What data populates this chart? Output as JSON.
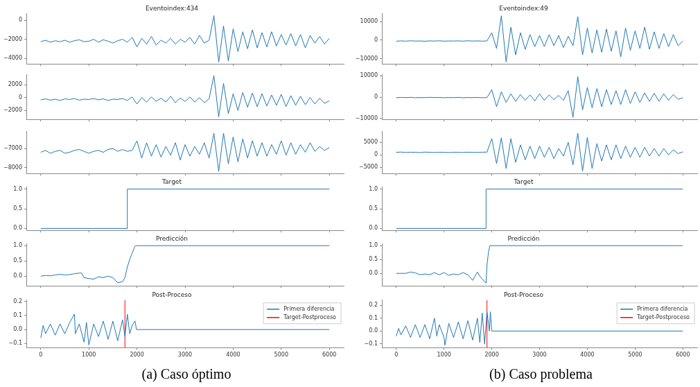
{
  "chart_data": [
    {
      "type": "line",
      "title": "Eventoindex:434",
      "tick_labels": "y",
      "xlim": [
        -300,
        6300
      ],
      "xticks": [
        0,
        1000,
        2000,
        3000,
        4000,
        5000,
        6000
      ],
      "ylim": [
        -4600,
        700
      ],
      "yticks": [
        0,
        {
          "value": -2000,
          "label": "−2000"
        },
        {
          "value": -4000,
          "label": "−4000"
        }
      ],
      "series": [
        {
          "color": "#1f77b4",
          "x": [
            0,
            100,
            200,
            300,
            400,
            500,
            600,
            700,
            800,
            900,
            1000,
            1100,
            1200,
            1300,
            1400,
            1500,
            1600,
            1700,
            1800,
            1900,
            2000,
            2100,
            2200,
            2300,
            2400,
            2500,
            2600,
            2700,
            2800,
            2900,
            3000,
            3100,
            3200,
            3300,
            3400,
            3500,
            3600,
            3700,
            3800,
            3900,
            4000,
            4100,
            4200,
            4300,
            4400,
            4500,
            4600,
            4700,
            4800,
            4900,
            5000,
            5100,
            5200,
            5300,
            5400,
            5500,
            5600,
            5700,
            5800,
            5900,
            6000
          ],
          "values": [
            -2250,
            -2100,
            -2300,
            -2150,
            -2250,
            -2100,
            -2300,
            -2150,
            -2050,
            -2250,
            -2200,
            -2000,
            -2300,
            -2050,
            -2200,
            -2400,
            -2150,
            -2000,
            -2300,
            -1800,
            -2800,
            -1900,
            -2500,
            -1700,
            -2600,
            -2100,
            -2400,
            -1900,
            -2500,
            -2000,
            -2300,
            -1800,
            -2500,
            -1600,
            -2400,
            -2100,
            500,
            -4400,
            -600,
            -4300,
            -900,
            -3300,
            -1200,
            -3000,
            -1000,
            -2900,
            -1300,
            -2800,
            -1200,
            -2700,
            -1500,
            -2600,
            -1400,
            -2700,
            -1500,
            -2900,
            -1600,
            -2400,
            -1700,
            -2500,
            -1900
          ]
        }
      ]
    },
    {
      "type": "line",
      "tick_labels": "y",
      "xlim": [
        -300,
        6300
      ],
      "xticks": [
        0,
        1000,
        2000,
        3000,
        4000,
        5000,
        6000
      ],
      "ylim": [
        -3400,
        3550
      ],
      "yticks": [
        2000,
        0,
        {
          "value": -2000,
          "label": "−2000"
        }
      ],
      "series": [
        {
          "color": "#1f77b4",
          "x": [
            0,
            100,
            200,
            300,
            400,
            500,
            600,
            700,
            800,
            900,
            1000,
            1100,
            1200,
            1300,
            1400,
            1500,
            1600,
            1700,
            1800,
            1900,
            2000,
            2100,
            2200,
            2300,
            2400,
            2500,
            2600,
            2700,
            2800,
            2900,
            3000,
            3100,
            3200,
            3300,
            3400,
            3500,
            3600,
            3700,
            3800,
            3900,
            4000,
            4100,
            4200,
            4300,
            4400,
            4500,
            4600,
            4700,
            4800,
            4900,
            5000,
            5100,
            5200,
            5300,
            5400,
            5500,
            5600,
            5700,
            5800,
            5900,
            6000
          ],
          "values": [
            -350,
            -200,
            -400,
            -250,
            -450,
            -200,
            -300,
            -150,
            -400,
            -250,
            -300,
            -150,
            -350,
            -200,
            -450,
            -250,
            -300,
            -150,
            -450,
            100,
            -1000,
            0,
            -700,
            100,
            -600,
            -100,
            -700,
            200,
            -800,
            -50,
            -600,
            100,
            -700,
            0,
            -800,
            -200,
            3400,
            -3000,
            2200,
            -2500,
            600,
            -2000,
            800,
            -1500,
            700,
            -1400,
            600,
            -1300,
            400,
            -1200,
            500,
            -1400,
            300,
            -1200,
            200,
            -1100,
            0,
            -1000,
            -100,
            -900,
            -500
          ]
        }
      ]
    },
    {
      "type": "line",
      "tick_labels": "y",
      "xlim": [
        -300,
        6300
      ],
      "xticks": [
        0,
        1000,
        2000,
        3000,
        4000,
        5000,
        6000
      ],
      "ylim": [
        -8310,
        -6120
      ],
      "yticks": [
        {
          "value": -7000,
          "label": "−7000"
        },
        {
          "value": -8000,
          "label": "−8000"
        }
      ],
      "series": [
        {
          "color": "#1f77b4",
          "x": [
            0,
            100,
            200,
            300,
            400,
            500,
            600,
            700,
            800,
            900,
            1000,
            1100,
            1200,
            1300,
            1400,
            1500,
            1600,
            1700,
            1800,
            1900,
            2000,
            2100,
            2200,
            2300,
            2400,
            2500,
            2600,
            2700,
            2800,
            2900,
            3000,
            3100,
            3200,
            3300,
            3400,
            3500,
            3600,
            3700,
            3800,
            3900,
            4000,
            4100,
            4200,
            4300,
            4400,
            4500,
            4600,
            4700,
            4800,
            4900,
            5000,
            5100,
            5200,
            5300,
            5400,
            5500,
            5600,
            5700,
            5800,
            5900,
            6000
          ],
          "values": [
            -7200,
            -7100,
            -7250,
            -7150,
            -7100,
            -7250,
            -7200,
            -7100,
            -7050,
            -7150,
            -7250,
            -7150,
            -7100,
            -7200,
            -7050,
            -7000,
            -7150,
            -7050,
            -7150,
            -7100,
            -6600,
            -7500,
            -6700,
            -7400,
            -6800,
            -7450,
            -6900,
            -7350,
            -6700,
            -7600,
            -6800,
            -7400,
            -6900,
            -7300,
            -6700,
            -7500,
            -6200,
            -8200,
            -6200,
            -7800,
            -6400,
            -7700,
            -6500,
            -7500,
            -6600,
            -7400,
            -6700,
            -7400,
            -6800,
            -7300,
            -6600,
            -7350,
            -6700,
            -7300,
            -6800,
            -7200,
            -6700,
            -7150,
            -6900,
            -7100,
            -6950
          ]
        }
      ]
    },
    {
      "type": "step",
      "title": "Target",
      "tick_labels": "y",
      "xlim": [
        -300,
        6300
      ],
      "xticks": [
        0,
        1000,
        2000,
        3000,
        4000,
        5000,
        6000
      ],
      "ylim": [
        -0.05,
        1.05
      ],
      "yticks": [
        {
          "value": 0,
          "label": "0.0"
        },
        {
          "value": 0.5,
          "label": "0.5"
        },
        {
          "value": 1,
          "label": "1.0"
        }
      ],
      "series": [
        {
          "color": "#1f77b4",
          "x": [
            0,
            1800,
            6000
          ],
          "values": [
            0,
            0,
            1
          ]
        }
      ]
    },
    {
      "type": "line",
      "title": "Predicción",
      "tick_labels": "y",
      "xlim": [
        -300,
        6300
      ],
      "xticks": [
        0,
        1000,
        2000,
        3000,
        4000,
        5000,
        6000
      ],
      "ylim": [
        -0.32,
        1.055
      ],
      "yticks": [
        {
          "value": 0,
          "label": "0.0"
        },
        {
          "value": 0.5,
          "label": "0.5"
        },
        {
          "value": 1,
          "label": "1.0"
        }
      ],
      "series": [
        {
          "color": "#1f77b4",
          "x": [
            0,
            100,
            200,
            300,
            400,
            500,
            600,
            700,
            800,
            850,
            900,
            1000,
            1100,
            1200,
            1300,
            1400,
            1500,
            1600,
            1700,
            1750,
            1800,
            1850,
            1900,
            1950,
            1970,
            6000
          ],
          "values": [
            0,
            0.02,
            0.01,
            0.04,
            0.06,
            0.04,
            0.05,
            0.08,
            0.1,
            0.1,
            -0.05,
            -0.08,
            -0.1,
            -0.02,
            -0.05,
            0,
            -0.05,
            -0.22,
            -0.18,
            -0.05,
            0.3,
            0.55,
            0.75,
            0.95,
            1,
            1
          ]
        }
      ]
    },
    {
      "type": "line",
      "title": "Post-Proceso",
      "legend": "top right",
      "annotations": [
        "(a) Caso óptimo"
      ],
      "xlim": [
        -300,
        6300
      ],
      "xticks": [
        0,
        1000,
        2000,
        3000,
        4000,
        5000,
        6000
      ],
      "ylim": [
        -0.13,
        0.21
      ],
      "yticks": [
        {
          "value": -0.1,
          "label": "−0.1"
        },
        {
          "value": 0,
          "label": "0.0"
        },
        {
          "value": 0.1,
          "label": "0.1"
        },
        {
          "value": 0.2,
          "label": "0.2"
        }
      ],
      "series": [
        {
          "name": "Primera diferencia",
          "color": "#1f77b4",
          "x": [
            0,
            50,
            100,
            200,
            300,
            400,
            500,
            600,
            700,
            720,
            800,
            900,
            950,
            1000,
            1100,
            1200,
            1300,
            1400,
            1500,
            1600,
            1700,
            1750,
            1800,
            1850,
            1900,
            1960,
            1990,
            6000
          ],
          "values": [
            -0.06,
            0.03,
            -0.03,
            0.04,
            -0.04,
            0.04,
            -0.03,
            0.05,
            0.11,
            -0.03,
            0.04,
            -0.09,
            0.05,
            -0.11,
            0.04,
            -0.05,
            0.06,
            -0.07,
            0.06,
            -0.08,
            0.07,
            -0.05,
            0.11,
            -0.03,
            0.03,
            0.06,
            0,
            0
          ]
        },
        {
          "name": "Target-Postproceso",
          "color": "#ff0000",
          "x": [
            1750,
            1750
          ],
          "values": [
            -0.13,
            0.21
          ]
        }
      ]
    },
    {
      "type": "line",
      "title": "Eventoindex:49",
      "tick_labels": "y",
      "xlim": [
        -300,
        6300
      ],
      "xticks": [
        0,
        1000,
        2000,
        3000,
        4000,
        5000,
        6000
      ],
      "ylim": [
        -12900,
        14300
      ],
      "yticks": [
        10000,
        0,
        {
          "value": -10000,
          "label": "−10000"
        }
      ],
      "series": [
        {
          "color": "#1f77b4",
          "x": [
            0,
            100,
            200,
            300,
            400,
            500,
            600,
            700,
            800,
            900,
            1000,
            1100,
            1200,
            1300,
            1400,
            1500,
            1600,
            1700,
            1800,
            1900,
            2000,
            2100,
            2200,
            2300,
            2400,
            2500,
            2600,
            2700,
            2800,
            2900,
            3000,
            3100,
            3200,
            3300,
            3400,
            3500,
            3600,
            3700,
            3800,
            3900,
            4000,
            4100,
            4200,
            4300,
            4400,
            4500,
            4600,
            4700,
            4800,
            4900,
            5000,
            5100,
            5200,
            5300,
            5400,
            5500,
            5600,
            5700,
            5800,
            5900,
            6000
          ],
          "values": [
            -600,
            -400,
            -550,
            -350,
            -500,
            -450,
            -600,
            -400,
            -500,
            -350,
            -550,
            -450,
            -500,
            -400,
            -550,
            -350,
            -500,
            -400,
            -550,
            -400,
            4000,
            -4500,
            13200,
            -11800,
            7000,
            -8000,
            4000,
            -5000,
            3000,
            -3500,
            2500,
            -3500,
            3000,
            -3000,
            2500,
            -4000,
            2000,
            -3000,
            12700,
            -8000,
            6500,
            -7000,
            5500,
            -6500,
            6000,
            -6000,
            5000,
            -9000,
            6500,
            -5500,
            5000,
            -4500,
            7000,
            -5000,
            4500,
            -4500,
            3500,
            -3500,
            3000,
            -3000,
            -500
          ]
        }
      ]
    },
    {
      "type": "line",
      "tick_labels": "y",
      "xlim": [
        -300,
        6300
      ],
      "xticks": [
        0,
        1000,
        2000,
        3000,
        4000,
        5000,
        6000
      ],
      "ylim": [
        -10500,
        10500
      ],
      "yticks": [
        10000,
        0,
        {
          "value": -10000,
          "label": "−10000"
        }
      ],
      "series": [
        {
          "color": "#1f77b4",
          "x": [
            0,
            100,
            200,
            300,
            400,
            500,
            600,
            700,
            800,
            900,
            1000,
            1100,
            1200,
            1300,
            1400,
            1500,
            1600,
            1700,
            1800,
            1900,
            2000,
            2100,
            2200,
            2300,
            2400,
            2500,
            2600,
            2700,
            2800,
            2900,
            3000,
            3100,
            3200,
            3300,
            3400,
            3500,
            3600,
            3700,
            3800,
            3900,
            4000,
            4100,
            4200,
            4300,
            4400,
            4500,
            4600,
            4700,
            4800,
            4900,
            5000,
            5100,
            5200,
            5300,
            5400,
            5500,
            5600,
            5700,
            5800,
            5900,
            6000
          ],
          "values": [
            -300,
            -150,
            -250,
            -100,
            -300,
            -200,
            -250,
            -100,
            -250,
            -150,
            -300,
            -200,
            -250,
            -100,
            -300,
            -200,
            -250,
            -150,
            -300,
            -200,
            3500,
            -4500,
            2500,
            -2500,
            1500,
            -2000,
            1200,
            -1500,
            1000,
            -1800,
            1500,
            -1500,
            1000,
            -1200,
            800,
            -1500,
            3000,
            -9500,
            9600,
            -6000,
            4500,
            -5000,
            4000,
            -4500,
            3500,
            -3500,
            3000,
            -3500,
            3500,
            -3000,
            2500,
            -2500,
            2000,
            -2000,
            1800,
            -2000,
            1500,
            -1500,
            1200,
            -1000,
            -300
          ]
        }
      ]
    },
    {
      "type": "line",
      "tick_labels": "y",
      "xlim": [
        -300,
        6300
      ],
      "xticks": [
        0,
        1000,
        2000,
        3000,
        4000,
        5000,
        6000
      ],
      "ylim": [
        -7500,
        9300
      ],
      "yticks": [
        5000,
        0,
        {
          "value": -5000,
          "label": "−5000"
        }
      ],
      "series": [
        {
          "color": "#1f77b4",
          "x": [
            0,
            100,
            200,
            300,
            400,
            500,
            600,
            700,
            800,
            900,
            1000,
            1100,
            1200,
            1300,
            1400,
            1500,
            1600,
            1700,
            1800,
            1900,
            2000,
            2100,
            2200,
            2300,
            2400,
            2500,
            2600,
            2700,
            2800,
            2900,
            3000,
            3100,
            3200,
            3300,
            3400,
            3500,
            3600,
            3700,
            3800,
            3900,
            4000,
            4100,
            4200,
            4300,
            4400,
            4500,
            4600,
            4700,
            4800,
            4900,
            5000,
            5100,
            5200,
            5300,
            5400,
            5500,
            5600,
            5700,
            5800,
            5900,
            6000
          ],
          "values": [
            1000,
            1100,
            950,
            1050,
            1000,
            900,
            1100,
            1000,
            950,
            1050,
            1000,
            900,
            1050,
            1000,
            950,
            1050,
            1000,
            950,
            1050,
            1100,
            6500,
            -3500,
            6800,
            -5500,
            6500,
            -3000,
            4000,
            -2000,
            3500,
            -1500,
            3500,
            -1000,
            3000,
            -1500,
            2500,
            -500,
            5000,
            -4000,
            8700,
            -6500,
            7000,
            -5500,
            4500,
            -2500,
            4000,
            -2000,
            4000,
            -1500,
            3500,
            -1000,
            3000,
            -1000,
            3000,
            -500,
            2500,
            -500,
            2500,
            0,
            2000,
            500,
            1200
          ]
        }
      ]
    },
    {
      "type": "step",
      "title": "Target",
      "tick_labels": "y",
      "xlim": [
        -300,
        6300
      ],
      "xticks": [
        0,
        1000,
        2000,
        3000,
        4000,
        5000,
        6000
      ],
      "ylim": [
        -0.05,
        1.05
      ],
      "yticks": [
        {
          "value": 0,
          "label": "0.0"
        },
        {
          "value": 0.5,
          "label": "0.5"
        },
        {
          "value": 1,
          "label": "1.0"
        }
      ],
      "series": [
        {
          "color": "#1f77b4",
          "x": [
            0,
            1880,
            6000
          ],
          "values": [
            0,
            0,
            1
          ]
        }
      ]
    },
    {
      "type": "line",
      "title": "Predicción",
      "tick_labels": "y",
      "xlim": [
        -300,
        6300
      ],
      "xticks": [
        0,
        1000,
        2000,
        3000,
        4000,
        5000,
        6000
      ],
      "ylim": [
        -0.45,
        1.06
      ],
      "yticks": [
        {
          "value": 0,
          "label": "0.0"
        },
        {
          "value": 0.5,
          "label": "0.5"
        },
        {
          "value": 1,
          "label": "1.0"
        }
      ],
      "series": [
        {
          "color": "#1f77b4",
          "x": [
            0,
            200,
            300,
            400,
            500,
            600,
            700,
            800,
            900,
            1000,
            1100,
            1200,
            1300,
            1400,
            1500,
            1600,
            1700,
            1750,
            1800,
            1880,
            1900,
            1930,
            1960,
            6000
          ],
          "values": [
            0,
            0,
            0.05,
            0.02,
            -0.05,
            -0.02,
            -0.05,
            0.03,
            -0.05,
            0.03,
            -0.07,
            -0.02,
            -0.05,
            0.03,
            -0.05,
            -0.25,
            0.05,
            -0.1,
            -0.2,
            -0.35,
            0.3,
            0.75,
            1,
            1
          ]
        }
      ]
    },
    {
      "type": "line",
      "title": "Post-Proceso",
      "legend": "top right",
      "annotations": [
        "(b) Caso problema"
      ],
      "xlim": [
        -300,
        6300
      ],
      "xticks": [
        0,
        1000,
        2000,
        3000,
        4000,
        5000,
        6000
      ],
      "ylim": [
        -0.13,
        0.24
      ],
      "yticks": [
        {
          "value": -0.1,
          "label": "−0.1"
        },
        {
          "value": 0,
          "label": "0.0"
        },
        {
          "value": 0.1,
          "label": "0.1"
        },
        {
          "value": 0.2,
          "label": "0.2"
        }
      ],
      "series": [
        {
          "name": "Primera diferencia",
          "color": "#1f77b4",
          "x": [
            0,
            50,
            100,
            200,
            300,
            400,
            500,
            600,
            700,
            800,
            850,
            900,
            1000,
            1020,
            1100,
            1200,
            1300,
            1400,
            1500,
            1600,
            1700,
            1750,
            1800,
            1850,
            1900,
            1950,
            1970,
            2000,
            6000
          ],
          "values": [
            -0.04,
            0.02,
            -0.03,
            0.04,
            -0.05,
            0.05,
            -0.05,
            0.05,
            -0.06,
            0.1,
            -0.04,
            0.05,
            -0.05,
            -0.11,
            0.06,
            -0.05,
            0.07,
            -0.06,
            0.08,
            -0.07,
            0.1,
            -0.09,
            0.14,
            -0.1,
            0.15,
            0,
            0.15,
            0,
            0
          ]
        },
        {
          "name": "Target-Postproceso",
          "color": "#ff0000",
          "x": [
            1900,
            1900
          ],
          "values": [
            -0.13,
            0.24
          ]
        }
      ]
    }
  ]
}
